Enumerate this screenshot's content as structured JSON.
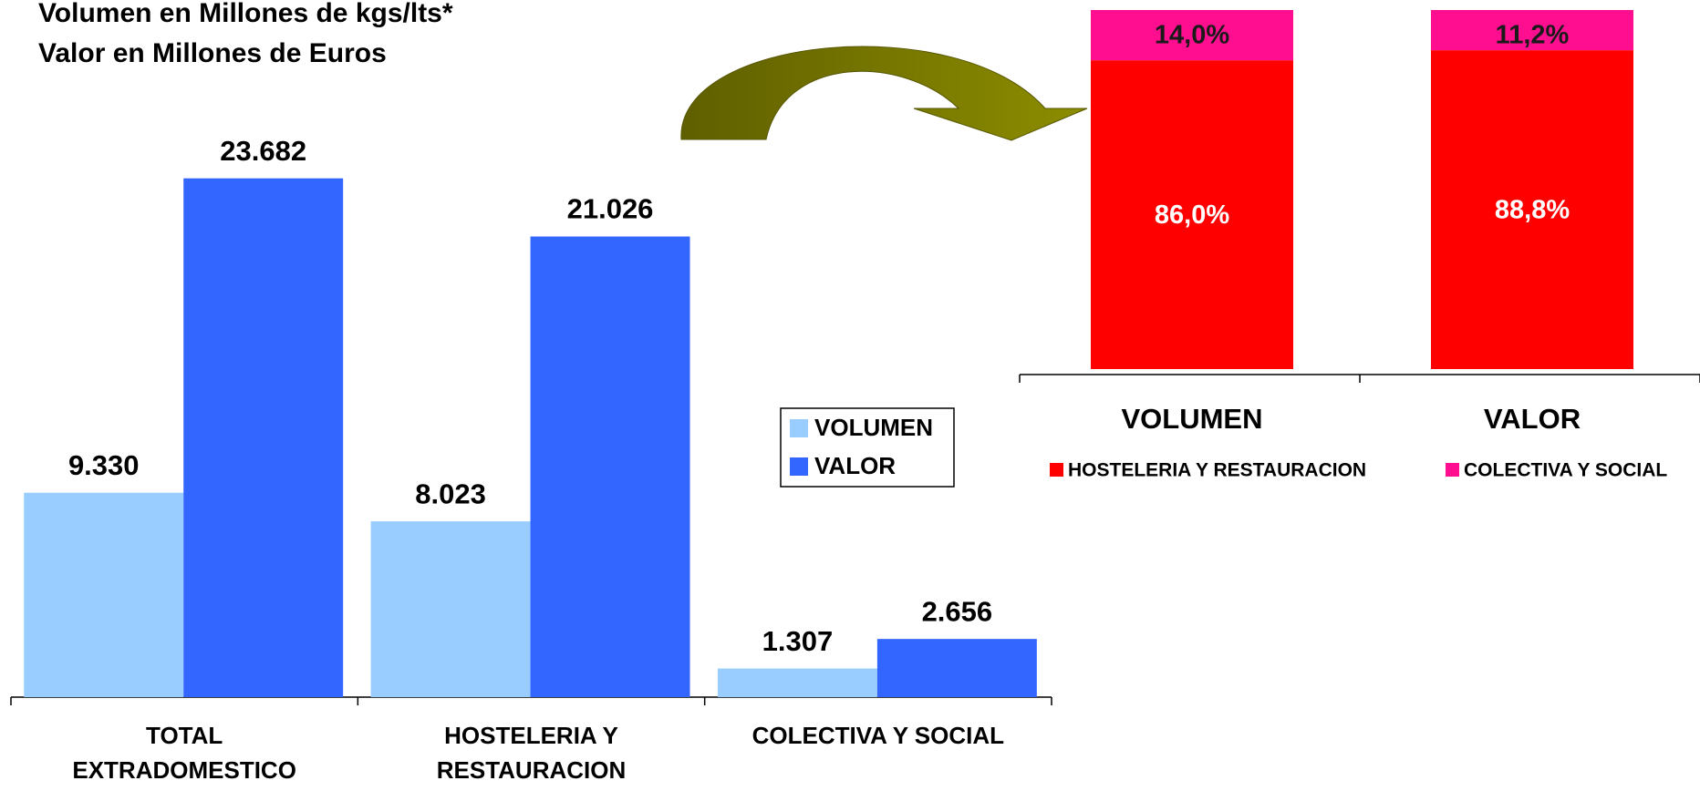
{
  "chart_data": [
    {
      "type": "bar",
      "title": "Volumen en Millones de kgs/lts*",
      "subtitle": "Valor en Millones de Euros",
      "categories": [
        "TOTAL EXTRADOMESTICO",
        "HOSTELERIA Y RESTAURACION",
        "COLECTIVA Y SOCIAL"
      ],
      "series": [
        {
          "name": "VOLUMEN",
          "color": "#99ccff",
          "values": [
            9330,
            8023,
            1307
          ],
          "value_labels": [
            "9.330",
            "8.023",
            "1.307"
          ]
        },
        {
          "name": "VALOR",
          "color": "#3366ff",
          "values": [
            23682,
            21026,
            2656
          ],
          "value_labels": [
            "23.682",
            "21.026",
            "2.656"
          ]
        }
      ],
      "ylim": [
        0,
        25000
      ],
      "legend": "right"
    },
    {
      "type": "stacked_bar",
      "categories": [
        "VOLUMEN",
        "VALOR"
      ],
      "series": [
        {
          "name": "HOSTELERIA Y RESTAURACION",
          "color": "#ff0000",
          "label_color": "#ffffff",
          "values": [
            86.0,
            88.8
          ],
          "value_labels": [
            "86,0%",
            "88,8%"
          ]
        },
        {
          "name": "COLECTIVA Y SOCIAL",
          "color": "#ff0f8f",
          "label_color": "#1a1a1a",
          "values": [
            14.0,
            11.2
          ],
          "value_labels": [
            "14,0%",
            "11,2%"
          ]
        }
      ],
      "ylim": [
        0,
        100
      ],
      "legend": "bottom"
    }
  ]
}
